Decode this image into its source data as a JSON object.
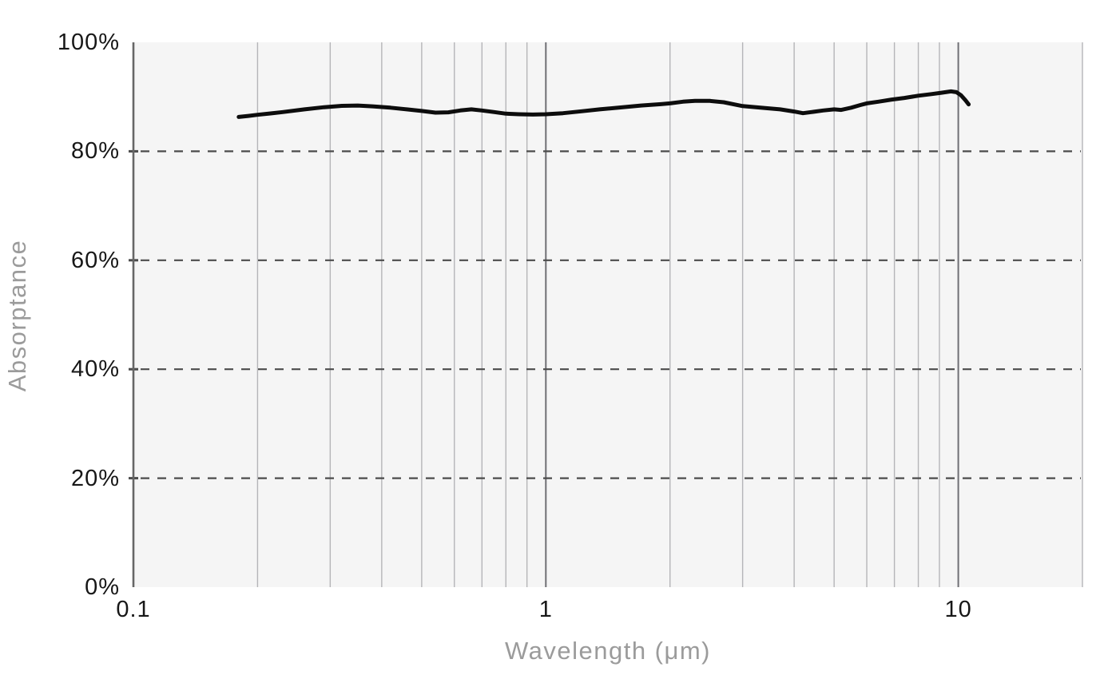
{
  "colors": {
    "page_bg": "#ffffff",
    "plot_bg": "#f5f5f5",
    "minor_gridline": "#b5b5b8",
    "major_gridline": "#6f6f74",
    "dashed_gridline": "#4c4c4c",
    "axis_line": "#666666",
    "tick_mark": "#4c4c4c",
    "series_line": "#0d0d0d",
    "tick_label": "#171717",
    "axis_title": "#9b9b9b"
  },
  "chart_data": {
    "type": "line",
    "title": "",
    "xlabel": "Wavelength (μm)",
    "ylabel": "Absorptance",
    "x_scale": "log",
    "y_scale": "linear",
    "x_range": [
      0.1,
      20
    ],
    "y_range": [
      0,
      100
    ],
    "legend": "none",
    "grid": {
      "vertical_style": "solid",
      "horizontal_style": "dashed",
      "horizontal_dashed_values": [
        20,
        40,
        60,
        80
      ]
    },
    "x_ticks": [
      {
        "value": 0.1,
        "label": "0.1"
      },
      {
        "value": 1,
        "label": "1"
      },
      {
        "value": 10,
        "label": "10"
      }
    ],
    "x_major_gridlines": [
      1,
      10
    ],
    "x_minor_gridlines": [
      0.2,
      0.3,
      0.4,
      0.5,
      0.6,
      0.7,
      0.8,
      0.9,
      2,
      3,
      4,
      5,
      6,
      7,
      8,
      9,
      20
    ],
    "y_ticks": [
      {
        "value": 0,
        "label": "0%"
      },
      {
        "value": 20,
        "label": "20%"
      },
      {
        "value": 40,
        "label": "40%"
      },
      {
        "value": 60,
        "label": "60%"
      },
      {
        "value": 80,
        "label": "80%"
      },
      {
        "value": 100,
        "label": "100%"
      }
    ],
    "series": [
      {
        "name": "Absorptance",
        "color": "#0d0d0d",
        "points": [
          [
            0.18,
            86.3
          ],
          [
            0.19,
            86.5
          ],
          [
            0.2,
            86.7
          ],
          [
            0.215,
            86.95
          ],
          [
            0.23,
            87.2
          ],
          [
            0.26,
            87.7
          ],
          [
            0.29,
            88.1
          ],
          [
            0.32,
            88.35
          ],
          [
            0.35,
            88.4
          ],
          [
            0.38,
            88.25
          ],
          [
            0.42,
            88.0
          ],
          [
            0.46,
            87.7
          ],
          [
            0.5,
            87.4
          ],
          [
            0.54,
            87.1
          ],
          [
            0.58,
            87.15
          ],
          [
            0.62,
            87.5
          ],
          [
            0.66,
            87.7
          ],
          [
            0.7,
            87.5
          ],
          [
            0.75,
            87.2
          ],
          [
            0.8,
            86.9
          ],
          [
            0.86,
            86.8
          ],
          [
            0.93,
            86.75
          ],
          [
            1.0,
            86.8
          ],
          [
            1.1,
            87.0
          ],
          [
            1.22,
            87.35
          ],
          [
            1.35,
            87.7
          ],
          [
            1.5,
            88.0
          ],
          [
            1.7,
            88.4
          ],
          [
            1.9,
            88.65
          ],
          [
            2.0,
            88.8
          ],
          [
            2.15,
            89.1
          ],
          [
            2.3,
            89.25
          ],
          [
            2.5,
            89.25
          ],
          [
            2.7,
            89.0
          ],
          [
            3.0,
            88.3
          ],
          [
            3.4,
            87.95
          ],
          [
            3.7,
            87.7
          ],
          [
            4.0,
            87.3
          ],
          [
            4.2,
            87.0
          ],
          [
            4.45,
            87.25
          ],
          [
            4.7,
            87.5
          ],
          [
            5.0,
            87.7
          ],
          [
            5.2,
            87.6
          ],
          [
            5.5,
            88.0
          ],
          [
            5.8,
            88.5
          ],
          [
            6.0,
            88.8
          ],
          [
            6.4,
            89.1
          ],
          [
            6.9,
            89.5
          ],
          [
            7.4,
            89.8
          ],
          [
            8.0,
            90.2
          ],
          [
            8.6,
            90.5
          ],
          [
            9.1,
            90.75
          ],
          [
            9.6,
            91.0
          ],
          [
            9.9,
            90.85
          ],
          [
            10.15,
            90.3
          ],
          [
            10.4,
            89.4
          ],
          [
            10.6,
            88.6
          ]
        ]
      }
    ]
  }
}
